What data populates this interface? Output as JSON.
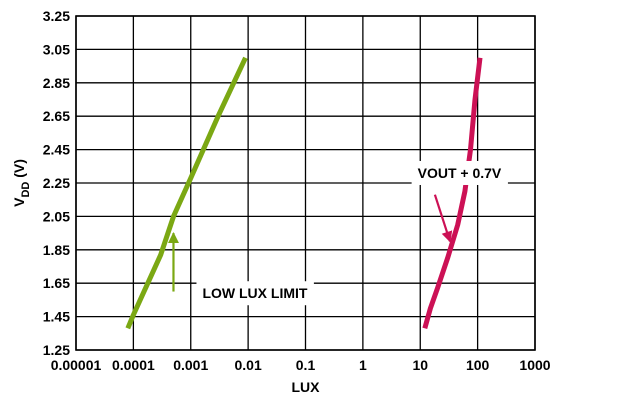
{
  "chart_data": {
    "type": "line",
    "xlabel": "LUX",
    "ylabel": "V",
    "ylabel_sub": "DD",
    "ylabel_unit": " (V)",
    "x_scale": "log",
    "xlim": [
      1e-05,
      1000
    ],
    "ylim": [
      1.25,
      3.25
    ],
    "grid": true,
    "x_ticks": [
      {
        "value": 1e-05,
        "label": "0.00001"
      },
      {
        "value": 0.0001,
        "label": "0.0001"
      },
      {
        "value": 0.001,
        "label": "0.001"
      },
      {
        "value": 0.01,
        "label": "0.01"
      },
      {
        "value": 0.1,
        "label": "0.1"
      },
      {
        "value": 1,
        "label": "1"
      },
      {
        "value": 10,
        "label": "10"
      },
      {
        "value": 100,
        "label": "100"
      },
      {
        "value": 1000,
        "label": "1000"
      }
    ],
    "y_ticks": [
      {
        "value": 1.25,
        "label": "1.25"
      },
      {
        "value": 1.45,
        "label": "1.45"
      },
      {
        "value": 1.65,
        "label": "1.65"
      },
      {
        "value": 1.85,
        "label": "1.85"
      },
      {
        "value": 2.05,
        "label": "2.05"
      },
      {
        "value": 2.25,
        "label": "2.25"
      },
      {
        "value": 2.45,
        "label": "2.45"
      },
      {
        "value": 2.65,
        "label": "2.65"
      },
      {
        "value": 2.85,
        "label": "2.85"
      },
      {
        "value": 3.05,
        "label": "3.05"
      },
      {
        "value": 3.25,
        "label": "3.25"
      }
    ],
    "series": [
      {
        "color": "#7ba813",
        "points": [
          [
            8e-05,
            1.38
          ],
          [
            0.0001,
            1.46
          ],
          [
            0.0003,
            1.82
          ],
          [
            0.0005,
            2.05
          ],
          [
            0.001,
            2.28
          ],
          [
            0.003,
            2.65
          ],
          [
            0.009,
            3.0
          ]
        ]
      },
      {
        "color": "#cc1155",
        "points": [
          [
            12,
            1.38
          ],
          [
            15,
            1.5
          ],
          [
            20,
            1.62
          ],
          [
            30,
            1.8
          ],
          [
            45,
            2.0
          ],
          [
            60,
            2.2
          ],
          [
            75,
            2.45
          ],
          [
            90,
            2.75
          ],
          [
            110,
            3.0
          ]
        ]
      }
    ],
    "annotations": [
      {
        "text": "LOW LUX LIMIT",
        "arrow_color": "#7ba813",
        "target": [
          0.0005,
          1.95
        ],
        "arrow_tail": [
          0.0005,
          1.6
        ],
        "label_at": [
          0.0016,
          1.56
        ]
      },
      {
        "text": "VOUT + 0.7V",
        "arrow_color": "#cc1155",
        "target": [
          33,
          1.9
        ],
        "arrow_tail": [
          18,
          2.18
        ],
        "label_at": [
          9,
          2.28
        ]
      }
    ]
  }
}
